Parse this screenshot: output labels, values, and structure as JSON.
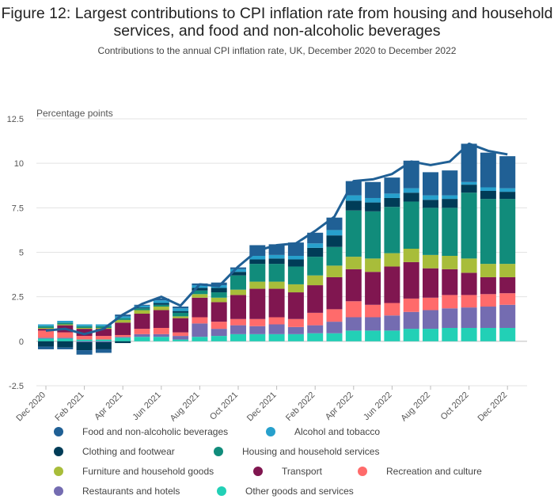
{
  "chart_data": {
    "type": "bar",
    "title": "Figure 12: Largest contributions to CPI inflation rate from housing and household services, and food and non-alcoholic beverages",
    "subtitle": "Contributions to the annual CPI inflation rate, UK, December 2020 to December 2022",
    "ylabel": "Percentage points",
    "xlabel": "",
    "ylim": [
      -2.5,
      12.5
    ],
    "yticks": [
      "12.5",
      "10",
      "7.5",
      "5",
      "2.5",
      "0",
      "-2.5"
    ],
    "ytick_values": [
      12.5,
      10,
      7.5,
      5,
      2.5,
      0,
      -2.5
    ],
    "grid": true,
    "legend_position": "bottom",
    "stacked": true,
    "categories": [
      "Dec 2020",
      "Jan 2021",
      "Feb 2021",
      "Mar 2021",
      "Apr 2021",
      "May 2021",
      "Jun 2021",
      "Jul 2021",
      "Aug 2021",
      "Sep 2021",
      "Oct 2021",
      "Nov 2021",
      "Dec 2021",
      "Jan 2022",
      "Feb 2022",
      "Mar 2022",
      "Apr 2022",
      "May 2022",
      "Jun 2022",
      "Jul 2022",
      "Aug 2022",
      "Sep 2022",
      "Oct 2022",
      "Nov 2022",
      "Dec 2022"
    ],
    "xtick_labels": [
      "Dec 2020",
      "Feb 2021",
      "Apr 2021",
      "Jun 2021",
      "Aug 2021",
      "Oct 2021",
      "Dec 2021",
      "Feb 2022",
      "Apr 2022",
      "Jun 2022",
      "Aug 2022",
      "Oct 2022",
      "Dec 2022"
    ],
    "xtick_indices": [
      0,
      2,
      4,
      6,
      8,
      10,
      12,
      14,
      16,
      18,
      20,
      22,
      24
    ],
    "series": [
      {
        "name": "Other goods and services",
        "color": "#22d0b6",
        "values": [
          0.15,
          0.15,
          0.1,
          0.1,
          0.2,
          0.25,
          0.25,
          0.1,
          0.25,
          0.3,
          0.4,
          0.4,
          0.4,
          0.4,
          0.45,
          0.45,
          0.6,
          0.6,
          0.6,
          0.7,
          0.7,
          0.75,
          0.75,
          0.75,
          0.75
        ]
      },
      {
        "name": "Restaurants and hotels",
        "color": "#746cb1",
        "values": [
          0.05,
          0.05,
          -0.05,
          -0.05,
          0.05,
          0.15,
          0.15,
          0.2,
          0.75,
          0.4,
          0.5,
          0.45,
          0.55,
          0.4,
          0.45,
          0.65,
          0.75,
          0.75,
          0.85,
          0.95,
          1.05,
          1.1,
          1.15,
          1.2,
          1.3
        ]
      },
      {
        "name": "Recreation and culture",
        "color": "#ff6b6b",
        "values": [
          0.4,
          0.3,
          0.2,
          0.2,
          0.1,
          0.3,
          0.35,
          0.2,
          0.35,
          0.4,
          0.35,
          0.4,
          0.4,
          0.45,
          0.7,
          0.7,
          0.9,
          0.7,
          0.7,
          0.75,
          0.7,
          0.75,
          0.7,
          0.7,
          0.65
        ]
      },
      {
        "name": "Transport",
        "color": "#801650",
        "values": [
          0.1,
          0.4,
          0.4,
          0.4,
          0.7,
          0.85,
          1.0,
          0.8,
          1.1,
          1.1,
          1.35,
          1.7,
          1.6,
          1.5,
          1.55,
          1.8,
          1.8,
          1.85,
          2.05,
          2.05,
          1.65,
          1.45,
          1.25,
          0.95,
          0.9
        ]
      },
      {
        "name": "Furniture and household goods",
        "color": "#a8bd3a",
        "values": [
          0.05,
          0.05,
          0.05,
          0.05,
          0.15,
          0.2,
          0.2,
          0.1,
          0.2,
          0.25,
          0.3,
          0.4,
          0.4,
          0.45,
          0.55,
          0.65,
          0.7,
          0.75,
          0.75,
          0.75,
          0.75,
          0.75,
          0.8,
          0.75,
          0.75
        ]
      },
      {
        "name": "Housing and household services",
        "color": "#118c7b",
        "values": [
          0.1,
          0.1,
          0.1,
          0.1,
          0.1,
          0.1,
          0.1,
          0.2,
          0.2,
          0.3,
          0.8,
          1.0,
          1.0,
          1.0,
          1.05,
          1.05,
          2.6,
          2.65,
          2.6,
          2.65,
          2.65,
          2.7,
          3.7,
          3.65,
          3.65
        ]
      },
      {
        "name": "Clothing and footwear",
        "color": "#003c57",
        "values": [
          -0.3,
          -0.35,
          -0.45,
          -0.4,
          -0.1,
          0.05,
          0.1,
          0.1,
          0.15,
          0.25,
          0.2,
          0.25,
          0.3,
          0.4,
          0.5,
          0.65,
          0.55,
          0.5,
          0.5,
          0.5,
          0.45,
          0.5,
          0.45,
          0.45,
          0.4
        ]
      },
      {
        "name": "Alcohol and tobacco",
        "color": "#27a0cc",
        "values": [
          0.1,
          0.1,
          0.1,
          0.1,
          0.1,
          0.1,
          0.15,
          0.15,
          0.15,
          0.15,
          0.15,
          0.2,
          0.2,
          0.2,
          0.25,
          0.3,
          0.3,
          0.25,
          0.25,
          0.25,
          0.25,
          0.2,
          0.15,
          0.2,
          0.2
        ]
      },
      {
        "name": "Food and non-alcoholic beverages",
        "color": "#206095",
        "values": [
          -0.15,
          -0.1,
          -0.25,
          -0.2,
          0.1,
          0.05,
          0.1,
          0.1,
          0.1,
          0.15,
          0.1,
          0.6,
          0.6,
          0.75,
          0.6,
          0.7,
          0.8,
          0.9,
          0.9,
          1.55,
          1.3,
          1.4,
          2.15,
          1.95,
          1.8
        ]
      }
    ],
    "cpi_line": {
      "color": "#206095",
      "values": [
        0.6,
        0.7,
        0.4,
        0.7,
        1.5,
        2.1,
        2.5,
        2.0,
        3.2,
        3.1,
        4.2,
        5.1,
        5.4,
        5.5,
        6.2,
        7.0,
        9.0,
        9.1,
        9.4,
        10.1,
        9.9,
        10.1,
        11.1,
        10.7,
        10.5
      ]
    },
    "legend_order": [
      "Food and non-alcoholic beverages",
      "Alcohol and tobacco",
      "Clothing and footwear",
      "Housing and household services",
      "Furniture and household goods",
      "Transport",
      "Recreation and culture",
      "Restaurants and hotels",
      "Other goods and services"
    ]
  }
}
